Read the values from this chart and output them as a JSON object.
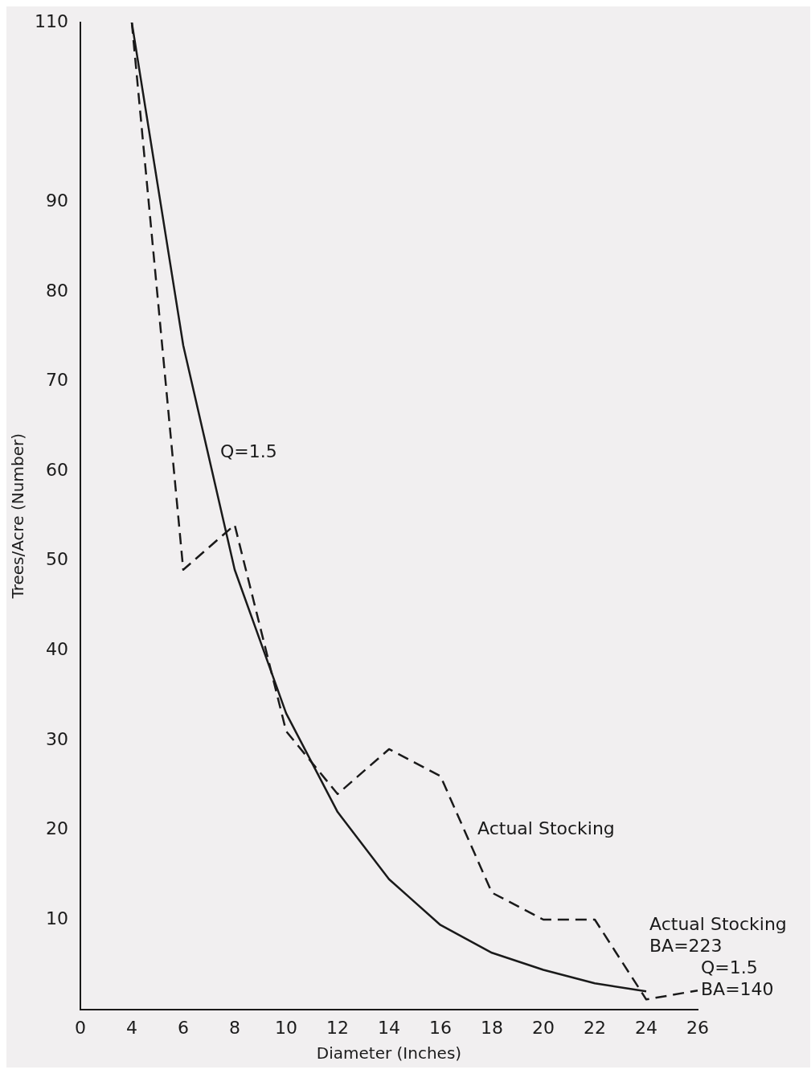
{
  "chart_data": {
    "type": "line",
    "xlabel": "Diameter (Inches)",
    "ylabel": "Trees/Acre (Number)",
    "categories": [
      "0",
      "4",
      "6",
      "8",
      "10",
      "12",
      "14",
      "16",
      "18",
      "20",
      "22",
      "24",
      "26"
    ],
    "series": [
      {
        "name": "Q=1.5",
        "color": "#1a1a1a",
        "line_style": "solid",
        "values": [
          null,
          110,
          74,
          49,
          33,
          22,
          14.5,
          9.4,
          6.3,
          4.4,
          2.9,
          2,
          null
        ]
      },
      {
        "name": "Actual Stocking",
        "color": "#1a1a1a",
        "line_style": "dashed",
        "values": [
          null,
          110,
          49,
          54,
          31,
          24,
          29,
          26,
          13,
          10,
          10,
          1.1,
          2.1
        ]
      }
    ],
    "ylim": [
      0,
      110
    ],
    "yticks": [
      10,
      20,
      30,
      40,
      50,
      60,
      70,
      80,
      90,
      110
    ],
    "grid": false,
    "legend": false,
    "marker": "none",
    "annotations": [
      "Actual Stocking",
      "BA=223",
      "Q=1.5",
      "BA=140"
    ]
  }
}
